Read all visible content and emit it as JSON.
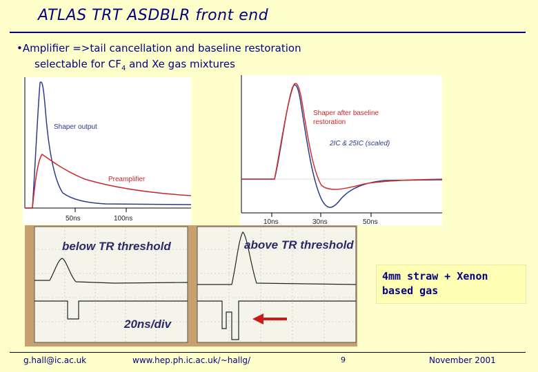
{
  "slide": {
    "title": "ATLAS TRT ASDBLR front end",
    "bullet_prefix": "•",
    "bullet_line1": "Amplifier =>tail cancellation and baseline restoration",
    "bullet_line2_pre": "selectable for CF",
    "bullet_line2_sub": "4",
    "bullet_line2_post": " and Xe gas mixtures"
  },
  "plot_left": {
    "label_shaper": "Shaper output",
    "label_preamp": "Preamplifier",
    "tick_50": "50ns",
    "tick_100": "100ns"
  },
  "plot_right": {
    "label_line1": "Shaper after baseline",
    "label_line2": "restoration",
    "label_scaled": "2IC & 25IC (scaled)",
    "tick_10": "10ns",
    "tick_30": "30ns",
    "tick_50": "50ns"
  },
  "scope": {
    "label_below": "below TR threshold",
    "label_above": "above TR threshold",
    "timebase": "20ns/div"
  },
  "callout": {
    "line1": "4mm straw + Xenon",
    "line2": "based gas"
  },
  "footer": {
    "email": "g.hall@ic.ac.uk",
    "url": "www.hep.ph.ic.ac.uk/~hallg/",
    "page": "9",
    "date": "November 2001"
  },
  "colors": {
    "title": "#000080",
    "background": "#ffffcc",
    "blue_trace": "#2a3a8c",
    "red_trace": "#d0302a",
    "scope_bezel": "#c8a070"
  }
}
